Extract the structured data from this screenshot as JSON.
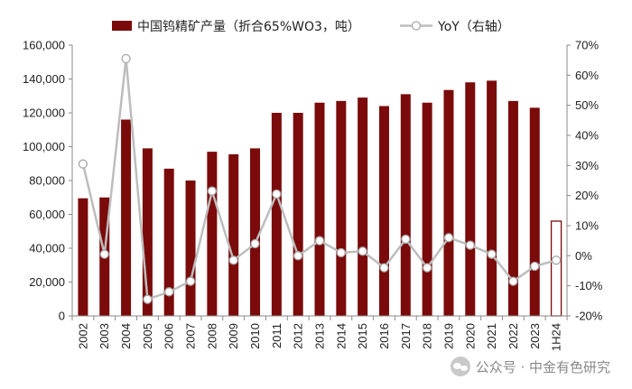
{
  "chart_data": {
    "type": "bar+line",
    "categories": [
      "2002",
      "2003",
      "2004",
      "2005",
      "2006",
      "2007",
      "2008",
      "2009",
      "2010",
      "2011",
      "2012",
      "2013",
      "2014",
      "2015",
      "2016",
      "2017",
      "2018",
      "2019",
      "2020",
      "2021",
      "2022",
      "2023",
      "1H24"
    ],
    "series": [
      {
        "name": "中国钨精矿产量（折合65%WO3，吨）",
        "kind": "bar",
        "axis": "left",
        "color": "#7b0a0a",
        "values": [
          69500,
          70000,
          116000,
          99000,
          87000,
          80000,
          97000,
          95500,
          99000,
          120000,
          120000,
          126000,
          127000,
          129000,
          124000,
          131000,
          126000,
          133500,
          138000,
          139000,
          127000,
          123000,
          56000
        ],
        "hollow_last": true
      },
      {
        "name": "YoY（右轴）",
        "kind": "line",
        "axis": "right",
        "color": "#bdbdbd",
        "unit": "%",
        "values": [
          30.5,
          0.5,
          65.5,
          -14.5,
          -12,
          -8.5,
          21.5,
          -1.5,
          4,
          20.5,
          0,
          5,
          1,
          1.5,
          -4,
          5.5,
          -4,
          6,
          3.5,
          0.5,
          -8.5,
          -3.5,
          -1.5
        ]
      }
    ],
    "y_left": {
      "min": 0,
      "max": 160000,
      "step": 20000,
      "ticks": [
        "0",
        "20,000",
        "40,000",
        "60,000",
        "80,000",
        "100,000",
        "120,000",
        "140,000",
        "160,000"
      ]
    },
    "y_right": {
      "min": -20,
      "max": 70,
      "step": 10,
      "ticks": [
        "-20%",
        "-10%",
        "0%",
        "10%",
        "20%",
        "30%",
        "40%",
        "50%",
        "60%",
        "70%"
      ]
    },
    "legend_position": "top",
    "grid": false
  },
  "watermark": {
    "text": "公众号 · 中金有色研究",
    "icon": "wechat-icon"
  }
}
